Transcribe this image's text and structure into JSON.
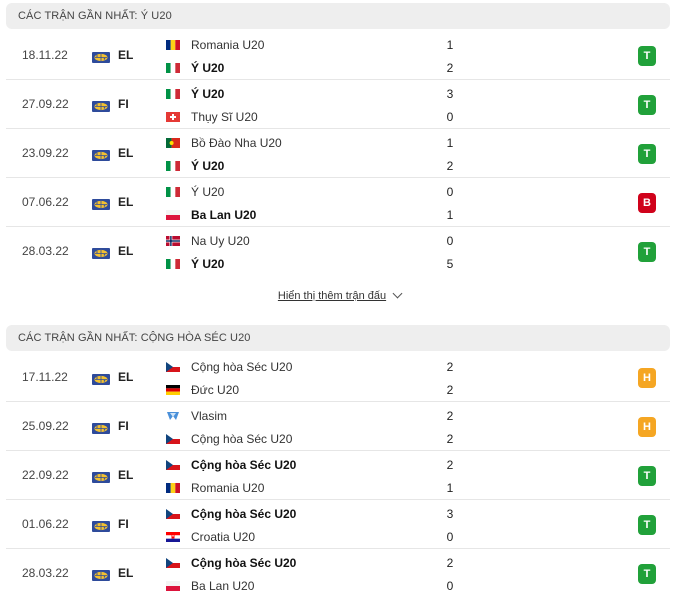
{
  "colors": {
    "win": "#21a13a",
    "draw": "#f5a623",
    "loss": "#d0021b",
    "header_bg": "#eeeeee"
  },
  "sections": [
    {
      "title": "CÁC TRẬN GẦN NHẤT: Ý U20",
      "matches": [
        {
          "date": "18.11.22",
          "comp": "EL",
          "home": {
            "name": "Romania U20",
            "flag": "romania",
            "bold": false
          },
          "away": {
            "name": "Ý U20",
            "flag": "italy",
            "bold": true
          },
          "home_score": "1",
          "away_score": "2",
          "result": "T",
          "result_type": "win"
        },
        {
          "date": "27.09.22",
          "comp": "FI",
          "home": {
            "name": "Ý U20",
            "flag": "italy",
            "bold": true
          },
          "away": {
            "name": "Thụy Sĩ U20",
            "flag": "switzerland",
            "bold": false
          },
          "home_score": "3",
          "away_score": "0",
          "result": "T",
          "result_type": "win"
        },
        {
          "date": "23.09.22",
          "comp": "EL",
          "home": {
            "name": "Bồ Đào Nha U20",
            "flag": "portugal",
            "bold": false
          },
          "away": {
            "name": "Ý U20",
            "flag": "italy",
            "bold": true
          },
          "home_score": "1",
          "away_score": "2",
          "result": "T",
          "result_type": "win"
        },
        {
          "date": "07.06.22",
          "comp": "EL",
          "home": {
            "name": "Ý U20",
            "flag": "italy",
            "bold": false
          },
          "away": {
            "name": "Ba Lan U20",
            "flag": "poland",
            "bold": true
          },
          "home_score": "0",
          "away_score": "1",
          "result": "B",
          "result_type": "loss"
        },
        {
          "date": "28.03.22",
          "comp": "EL",
          "home": {
            "name": "Na Uy U20",
            "flag": "norway",
            "bold": false
          },
          "away": {
            "name": "Ý U20",
            "flag": "italy",
            "bold": true
          },
          "home_score": "0",
          "away_score": "5",
          "result": "T",
          "result_type": "win"
        }
      ]
    },
    {
      "title": "CÁC TRẬN GẦN NHẤT: CỘNG HÒA SÉC U20",
      "matches": [
        {
          "date": "17.11.22",
          "comp": "EL",
          "home": {
            "name": "Cộng hòa Séc U20",
            "flag": "czech",
            "bold": false
          },
          "away": {
            "name": "Đức U20",
            "flag": "germany",
            "bold": false
          },
          "home_score": "2",
          "away_score": "2",
          "result": "H",
          "result_type": "draw"
        },
        {
          "date": "25.09.22",
          "comp": "FI",
          "home": {
            "name": "Vlasim",
            "flag": "vlasim",
            "bold": false
          },
          "away": {
            "name": "Cộng hòa Séc U20",
            "flag": "czech",
            "bold": false
          },
          "home_score": "2",
          "away_score": "2",
          "result": "H",
          "result_type": "draw"
        },
        {
          "date": "22.09.22",
          "comp": "EL",
          "home": {
            "name": "Cộng hòa Séc U20",
            "flag": "czech",
            "bold": true
          },
          "away": {
            "name": "Romania U20",
            "flag": "romania",
            "bold": false
          },
          "home_score": "2",
          "away_score": "1",
          "result": "T",
          "result_type": "win"
        },
        {
          "date": "01.06.22",
          "comp": "FI",
          "home": {
            "name": "Cộng hòa Séc U20",
            "flag": "czech",
            "bold": true
          },
          "away": {
            "name": "Croatia U20",
            "flag": "croatia",
            "bold": false
          },
          "home_score": "3",
          "away_score": "0",
          "result": "T",
          "result_type": "win"
        },
        {
          "date": "28.03.22",
          "comp": "EL",
          "home": {
            "name": "Cộng hòa Séc U20",
            "flag": "czech",
            "bold": true
          },
          "away": {
            "name": "Ba Lan U20",
            "flag": "poland",
            "bold": false
          },
          "home_score": "2",
          "away_score": "0",
          "result": "T",
          "result_type": "win"
        }
      ]
    }
  ],
  "more_link": {
    "label": "Hiển thị thêm trận đấu",
    "icon": "chevron-down-icon"
  }
}
